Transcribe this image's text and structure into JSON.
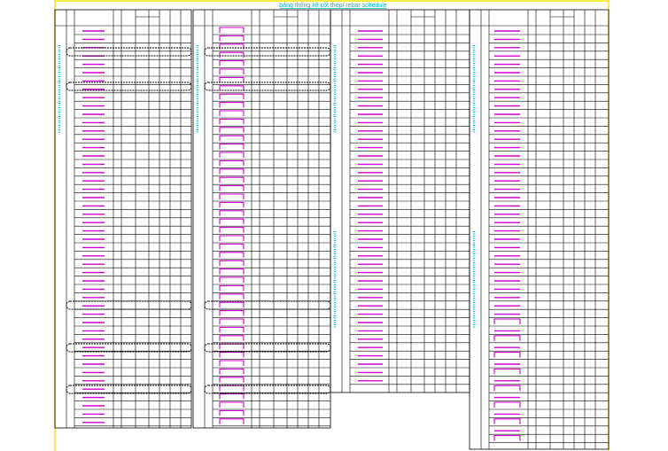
{
  "header": {
    "title": "bảng thống kê cốt thép/ rebar schedule"
  }
}
